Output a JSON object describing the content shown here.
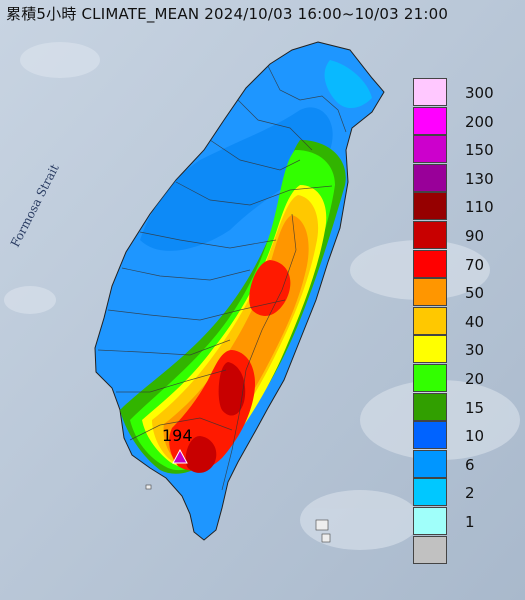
{
  "title": "累積5小時 CLIMATE_MEAN 2024/10/03 16:00~10/03 21:00",
  "sea_label": "Formosa Strait",
  "max_marker": {
    "value": "194",
    "marker_color": "#c400c4"
  },
  "legend": [
    {
      "label": "300",
      "color": "#ffc8ff"
    },
    {
      "label": "200",
      "color": "#ff00ff"
    },
    {
      "label": "150",
      "color": "#cc00cc"
    },
    {
      "label": "130",
      "color": "#990099"
    },
    {
      "label": "110",
      "color": "#960000"
    },
    {
      "label": "90",
      "color": "#c80000"
    },
    {
      "label": "70",
      "color": "#ff0000"
    },
    {
      "label": "50",
      "color": "#ff9600"
    },
    {
      "label": "40",
      "color": "#ffc800"
    },
    {
      "label": "30",
      "color": "#ffff00"
    },
    {
      "label": "20",
      "color": "#32ff00"
    },
    {
      "label": "15",
      "color": "#319f00"
    },
    {
      "label": "10",
      "color": "#0063ff"
    },
    {
      "label": "6",
      "color": "#0096ff"
    },
    {
      "label": "2",
      "color": "#00c8ff"
    },
    {
      "label": "1",
      "color": "#a0fffa"
    },
    {
      "label": "",
      "color": "#c1c1c1"
    }
  ]
}
